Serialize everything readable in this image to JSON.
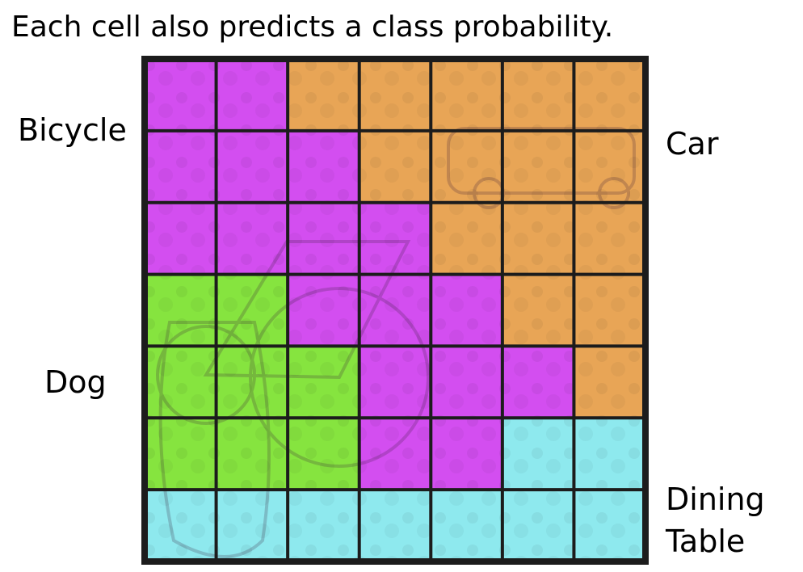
{
  "title": "Each cell also predicts a class probability.",
  "labels": {
    "bicycle": "Bicycle",
    "car": "Car",
    "dog": "Dog",
    "dining_line1": "Dining",
    "dining_line2": "Table"
  },
  "grid": {
    "rows": 7,
    "cols": 7,
    "classes": {
      "B": {
        "name": "bicycle",
        "color": "#d34ef0"
      },
      "C": {
        "name": "car",
        "color": "#e8a556"
      },
      "D": {
        "name": "dog",
        "color": "#86e43f"
      },
      "T": {
        "name": "dining-table",
        "color": "#8ee9ee"
      }
    },
    "cells": [
      "BBCCCCC",
      "BBBCCCC",
      "BBBBCCC",
      "DDBBBCC",
      "DDDBBBC",
      "DDDBBTT",
      "TTTTTTT"
    ],
    "line_color": "#1c1c1c"
  }
}
